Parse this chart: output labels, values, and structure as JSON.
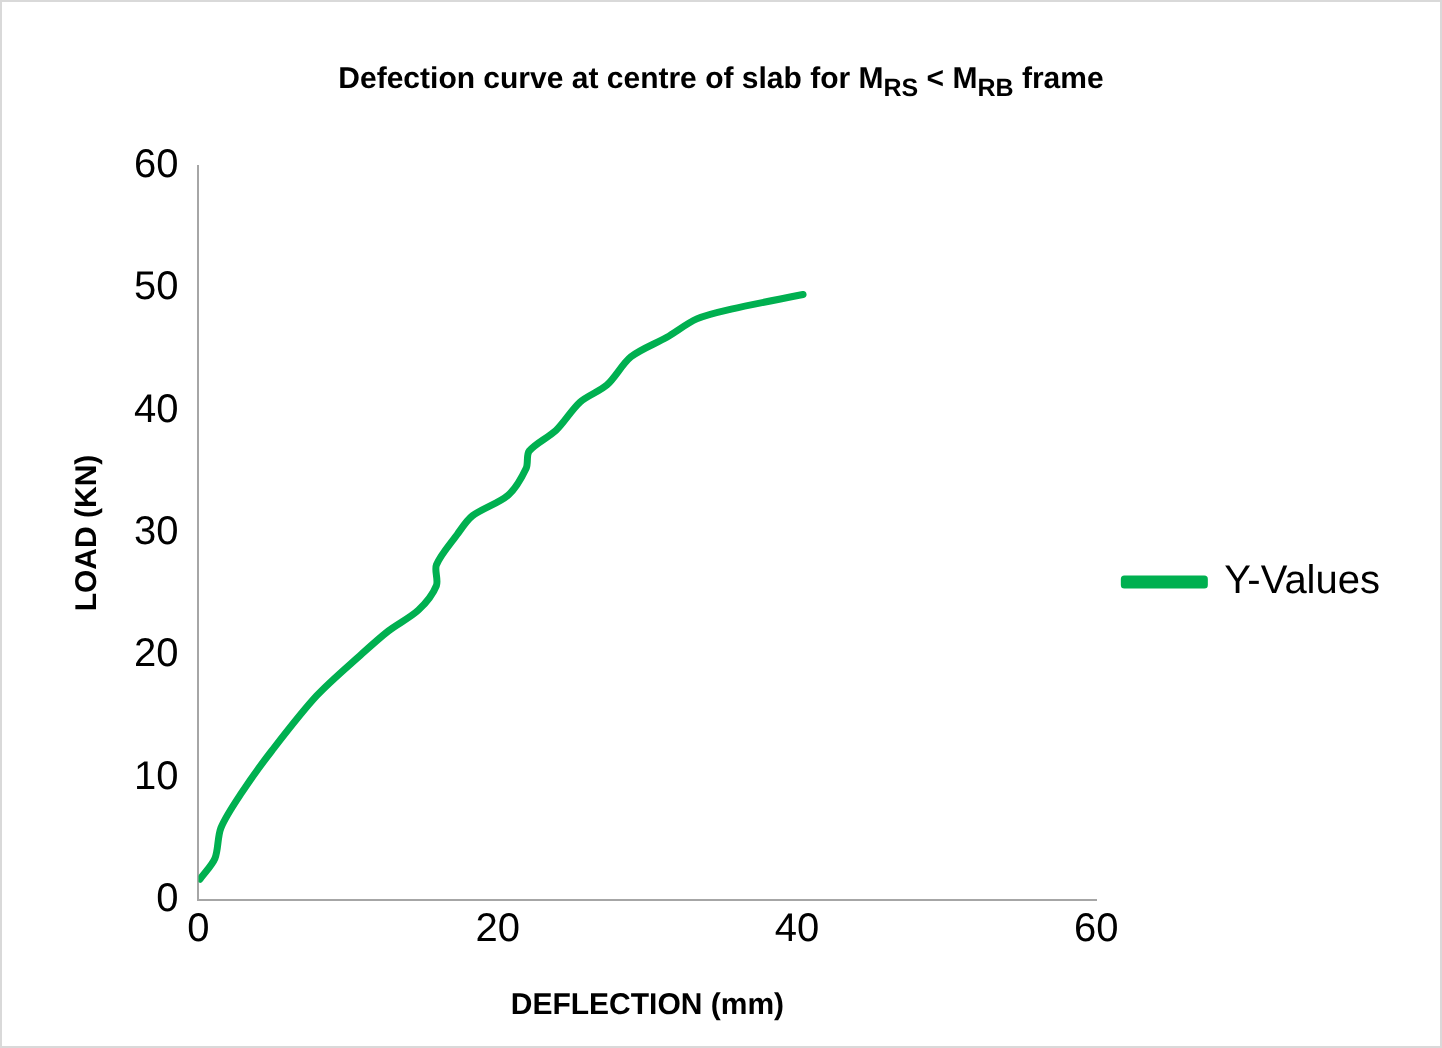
{
  "chart_data": {
    "type": "line",
    "title": "Defection curve at centre of slab for M$_{RS}$ < M$_{RB}$ frame",
    "xlabel": "DEFLECTION (mm)",
    "ylabel": "LOAD (KN)",
    "xlim": [
      0,
      60
    ],
    "xticks": [
      0,
      20,
      40,
      60
    ],
    "ylim": [
      0,
      60
    ],
    "yticks": [
      0,
      10,
      20,
      30,
      40,
      50,
      60
    ],
    "grid": false,
    "legend": "right",
    "marker": "none",
    "series": [
      {
        "name": "Y-Values",
        "color": "#00b050",
        "x": [
          0.1,
          1.1,
          1.5,
          2.9,
          4.9,
          7.9,
          10.9,
          12.7,
          14.7,
          15.9,
          15.9,
          17.3,
          18.3,
          20.7,
          21.9,
          22.1,
          23.9,
          25.5,
          27.3,
          28.9,
          31.3,
          33.3,
          35.6,
          40.4
        ],
        "values": [
          1.7,
          3.4,
          5.9,
          8.8,
          12.2,
          16.7,
          20.1,
          22.0,
          23.7,
          25.7,
          27.4,
          29.9,
          31.4,
          33.1,
          35.3,
          36.7,
          38.4,
          40.7,
          42.1,
          44.4,
          46.0,
          47.5,
          48.3,
          49.5
        ]
      }
    ]
  }
}
